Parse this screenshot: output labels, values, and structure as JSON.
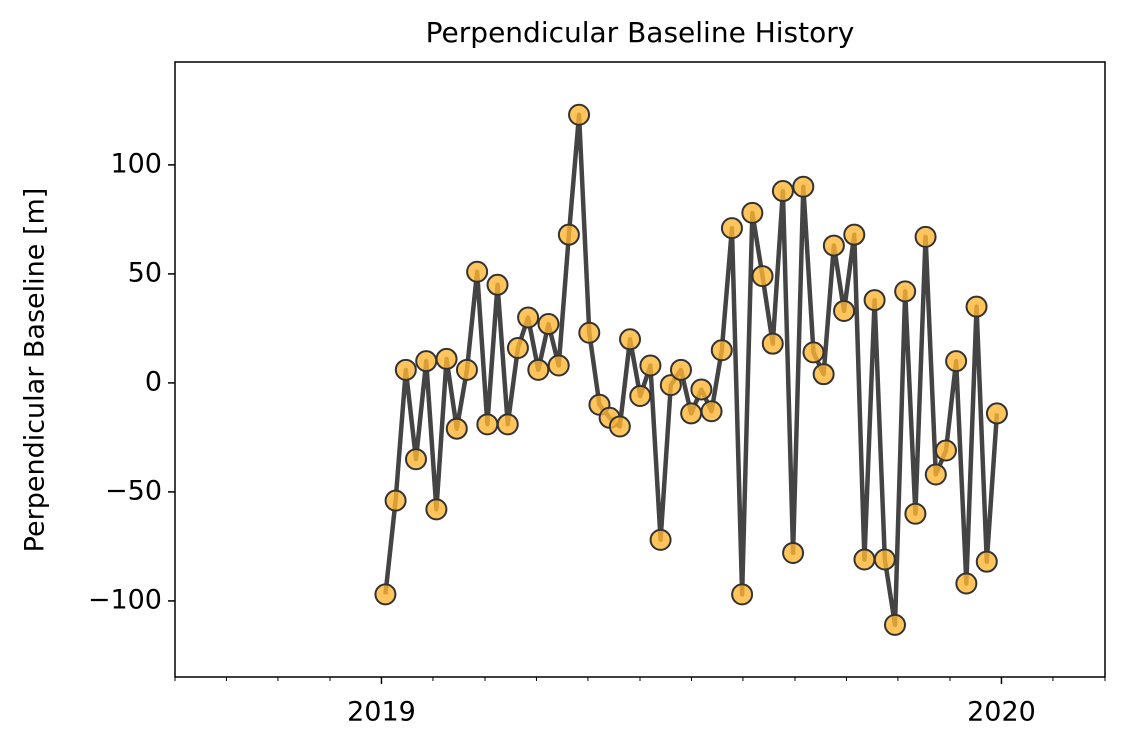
{
  "chart_data": {
    "type": "line",
    "title": "Perpendicular Baseline History",
    "ylabel": "Perpendicular Baseline [m]",
    "x": [
      2019.0064,
      2019.0228,
      2019.0393,
      2019.0557,
      2019.0722,
      2019.0886,
      2019.105,
      2019.1215,
      2019.1379,
      2019.1543,
      2019.1708,
      2019.1872,
      2019.2037,
      2019.2201,
      2019.2365,
      2019.253,
      2019.2694,
      2019.2859,
      2019.3023,
      2019.3187,
      2019.3352,
      2019.3516,
      2019.368,
      2019.3845,
      2019.4009,
      2019.4174,
      2019.4338,
      2019.4502,
      2019.4667,
      2019.4831,
      2019.4995,
      2019.516,
      2019.5324,
      2019.5489,
      2019.5653,
      2019.5817,
      2019.5982,
      2019.6146,
      2019.6311,
      2019.6475,
      2019.6639,
      2019.6804,
      2019.6968,
      2019.7132,
      2019.7297,
      2019.7461,
      2019.7626,
      2019.779,
      2019.7954,
      2019.8119,
      2019.8283,
      2019.8447,
      2019.8612,
      2019.8776,
      2019.8941,
      2019.9105,
      2019.9269,
      2019.9434,
      2019.9598,
      2019.9763,
      2019.9927
    ],
    "values": [
      -97,
      -54,
      6,
      -35,
      10,
      -58,
      11,
      -21,
      6,
      51,
      -19,
      45,
      -19,
      16,
      30,
      6,
      27,
      8,
      68,
      123,
      23,
      -10,
      -16,
      -20,
      20,
      -6,
      8,
      -72,
      -1,
      6,
      -14,
      -3,
      -13,
      15,
      71,
      -97,
      78,
      49,
      18,
      88,
      -78,
      90,
      14,
      4,
      63,
      33,
      68,
      -81,
      38,
      -81,
      -111,
      42,
      -60,
      67,
      -42,
      -31,
      10,
      -92,
      35,
      -82,
      -14
    ],
    "line_color": "#444444",
    "marker_color": "#ffb733",
    "xlim": [
      2018.667,
      2020.167
    ],
    "xticks": [
      2019,
      2020
    ],
    "xminorticks": [
      2018.667,
      2018.75,
      2018.833,
      2018.917,
      2019.083,
      2019.167,
      2019.25,
      2019.333,
      2019.417,
      2019.5,
      2019.583,
      2019.667,
      2019.75,
      2019.833,
      2019.917,
      2020.083,
      2020.167
    ],
    "ylim": [
      -134.9,
      147.2
    ],
    "yticks": [
      {
        "value": -100,
        "label": "−100"
      },
      {
        "value": -50,
        "label": "−50"
      },
      0,
      50,
      100
    ]
  }
}
